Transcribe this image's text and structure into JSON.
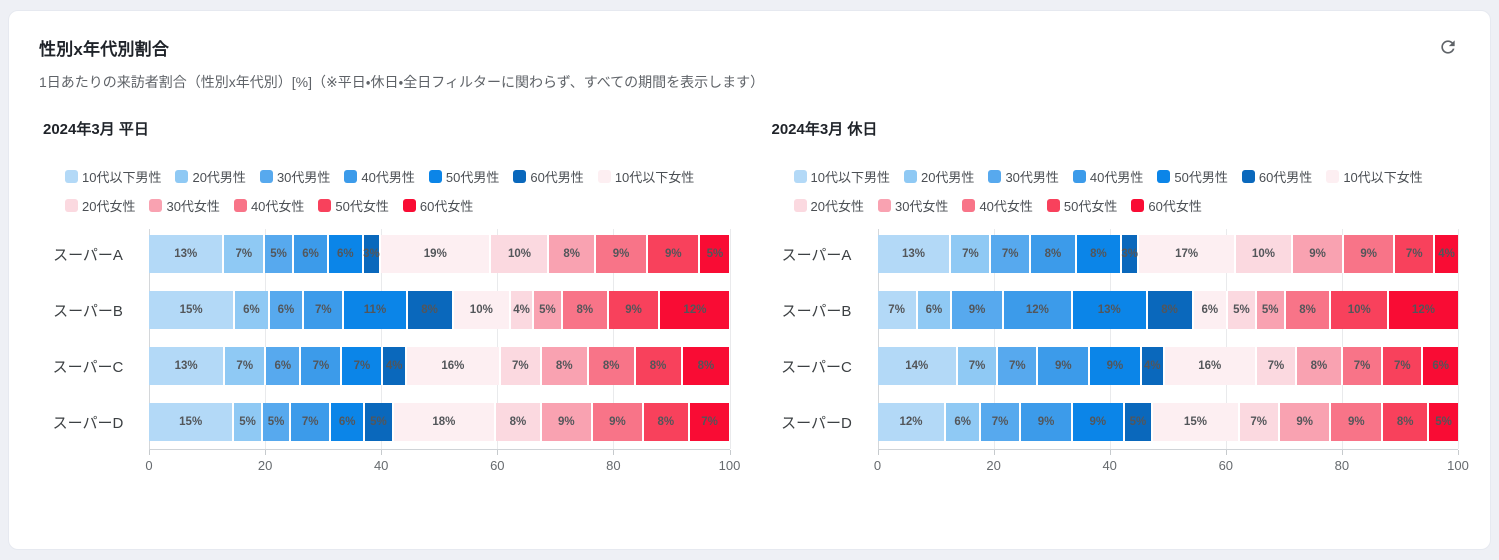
{
  "header": {
    "title": "性別x年代別割合",
    "subtitle": "1日あたりの来訪者割合（性別x年代別）[%]（※平日・休日・全日フィルターに関わらず、すべての期間を表示します）",
    "refresh_icon": "refresh-icon"
  },
  "colors": {
    "male_scale": [
      "#B3D9F7",
      "#8FC9F4",
      "#57A9EE",
      "#3C9BEA",
      "#0B85E8",
      "#0A68BC"
    ],
    "female_scale": [
      "#FDEFF2",
      "#FBD9E0",
      "#F9A2B1",
      "#F87488",
      "#F8415C",
      "#F90C34"
    ],
    "axis_line": "#cfd3d7",
    "grid_line": "#e9eaec"
  },
  "chart_data": [
    {
      "type": "bar",
      "orientation": "horizontal",
      "stacked": true,
      "title": "2024年3月 平日",
      "categories": [
        "スーパーA",
        "スーパーB",
        "スーパーC",
        "スーパーD"
      ],
      "series": [
        {
          "name": "10代以下男性",
          "color": "#B3D9F7",
          "values": [
            13,
            15,
            13,
            15
          ]
        },
        {
          "name": "20代男性",
          "color": "#8FC9F4",
          "values": [
            7,
            6,
            7,
            5
          ]
        },
        {
          "name": "30代男性",
          "color": "#57A9EE",
          "values": [
            5,
            6,
            6,
            5
          ]
        },
        {
          "name": "40代男性",
          "color": "#3C9BEA",
          "values": [
            6,
            7,
            7,
            7
          ]
        },
        {
          "name": "50代男性",
          "color": "#0B85E8",
          "values": [
            6,
            11,
            7,
            6
          ]
        },
        {
          "name": "60代男性",
          "color": "#0A68BC",
          "values": [
            3,
            8,
            4,
            5
          ]
        },
        {
          "name": "10代以下女性",
          "color": "#FDEFF2",
          "values": [
            19,
            10,
            16,
            18
          ]
        },
        {
          "name": "20代女性",
          "color": "#FBD9E0",
          "values": [
            10,
            4,
            7,
            8
          ]
        },
        {
          "name": "30代女性",
          "color": "#F9A2B1",
          "values": [
            8,
            5,
            8,
            9
          ]
        },
        {
          "name": "40代女性",
          "color": "#F87488",
          "values": [
            9,
            8,
            8,
            9
          ]
        },
        {
          "name": "50代女性",
          "color": "#F8415C",
          "values": [
            9,
            9,
            8,
            8
          ]
        },
        {
          "name": "60代女性",
          "color": "#F90C34",
          "values": [
            5,
            12,
            8,
            7
          ]
        }
      ],
      "value_suffix": "%",
      "xlim": [
        0,
        100
      ],
      "xticks": [
        0,
        20,
        40,
        60,
        80,
        100
      ],
      "legend_position": "top",
      "grid": true
    },
    {
      "type": "bar",
      "orientation": "horizontal",
      "stacked": true,
      "title": "2024年3月 休日",
      "categories": [
        "スーパーA",
        "スーパーB",
        "スーパーC",
        "スーパーD"
      ],
      "series": [
        {
          "name": "10代以下男性",
          "color": "#B3D9F7",
          "values": [
            13,
            7,
            14,
            12
          ]
        },
        {
          "name": "20代男性",
          "color": "#8FC9F4",
          "values": [
            7,
            6,
            7,
            6
          ]
        },
        {
          "name": "30代男性",
          "color": "#57A9EE",
          "values": [
            7,
            9,
            7,
            7
          ]
        },
        {
          "name": "40代男性",
          "color": "#3C9BEA",
          "values": [
            8,
            12,
            9,
            9
          ]
        },
        {
          "name": "50代男性",
          "color": "#0B85E8",
          "values": [
            8,
            13,
            9,
            9
          ]
        },
        {
          "name": "60代男性",
          "color": "#0A68BC",
          "values": [
            3,
            8,
            4,
            5
          ]
        },
        {
          "name": "10代以下女性",
          "color": "#FDEFF2",
          "values": [
            17,
            6,
            16,
            15
          ]
        },
        {
          "name": "20代女性",
          "color": "#FBD9E0",
          "values": [
            10,
            5,
            7,
            7
          ]
        },
        {
          "name": "30代女性",
          "color": "#F9A2B1",
          "values": [
            9,
            5,
            8,
            9
          ]
        },
        {
          "name": "40代女性",
          "color": "#F87488",
          "values": [
            9,
            8,
            7,
            9
          ]
        },
        {
          "name": "50代女性",
          "color": "#F8415C",
          "values": [
            7,
            10,
            7,
            8
          ]
        },
        {
          "name": "60代女性",
          "color": "#F90C34",
          "values": [
            4,
            12,
            6,
            5
          ]
        }
      ],
      "value_suffix": "%",
      "xlim": [
        0,
        100
      ],
      "xticks": [
        0,
        20,
        40,
        60,
        80,
        100
      ],
      "legend_position": "top",
      "grid": true
    }
  ]
}
